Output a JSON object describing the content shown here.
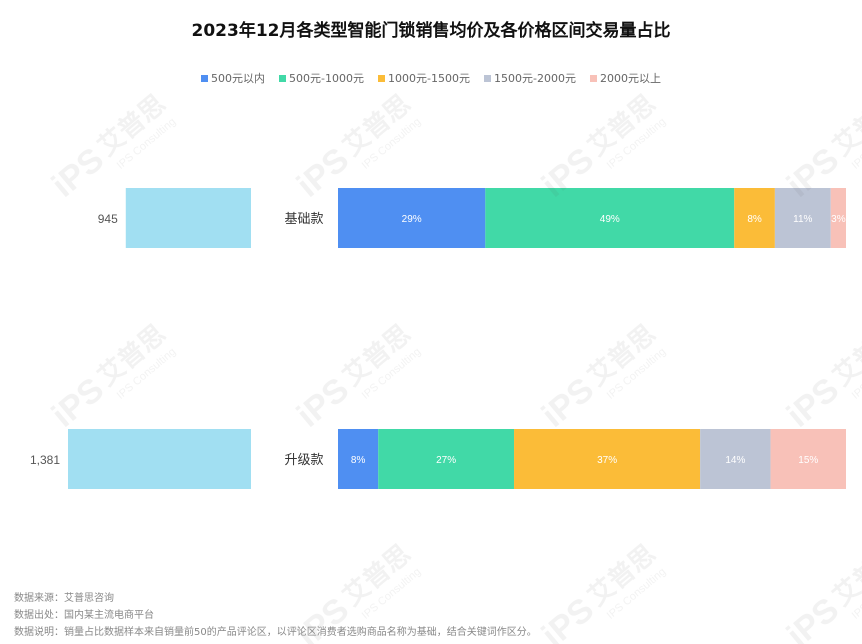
{
  "chart_data": {
    "type": "bar",
    "title": "2023年12月各类型智能门锁销售均价及各价格区间交易量占比",
    "categories": [
      "基础款",
      "升级款"
    ],
    "avg_price": {
      "values": [
        945,
        1381
      ],
      "labels": [
        "945",
        "1,381"
      ],
      "color": "#a1dff2"
    },
    "series": [
      {
        "name": "500元以内",
        "color": "#4f8ff2",
        "values": [
          29,
          8
        ],
        "labels": [
          "29%",
          "8%"
        ]
      },
      {
        "name": "500元-1000元",
        "color": "#41d9a7",
        "values": [
          49,
          27
        ],
        "labels": [
          "49%",
          "27%"
        ]
      },
      {
        "name": "1000元-1500元",
        "color": "#fbbc38",
        "values": [
          8,
          37
        ],
        "labels": [
          "8%",
          "37%"
        ]
      },
      {
        "name": "1500元-2000元",
        "color": "#bcc4d5",
        "values": [
          11,
          14
        ],
        "labels": [
          "11%",
          "14%"
        ]
      },
      {
        "name": "2000元以上",
        "color": "#f8c1b8",
        "values": [
          3,
          15
        ],
        "labels": [
          "3%",
          "15%"
        ]
      }
    ],
    "legend_position": "top-center"
  },
  "footnotes": {
    "source": "数据来源：艾普思咨询",
    "origin": "数据出处：国内某主流电商平台",
    "note": "数据说明：销量占比数据样本来自销量前50的产品评论区，以评论区消费者选购商品名称为基础，结合关键词作区分。"
  },
  "watermark": {
    "text_cn": "艾普思",
    "text_en": "IPS Consulting",
    "logo": "iPS"
  }
}
